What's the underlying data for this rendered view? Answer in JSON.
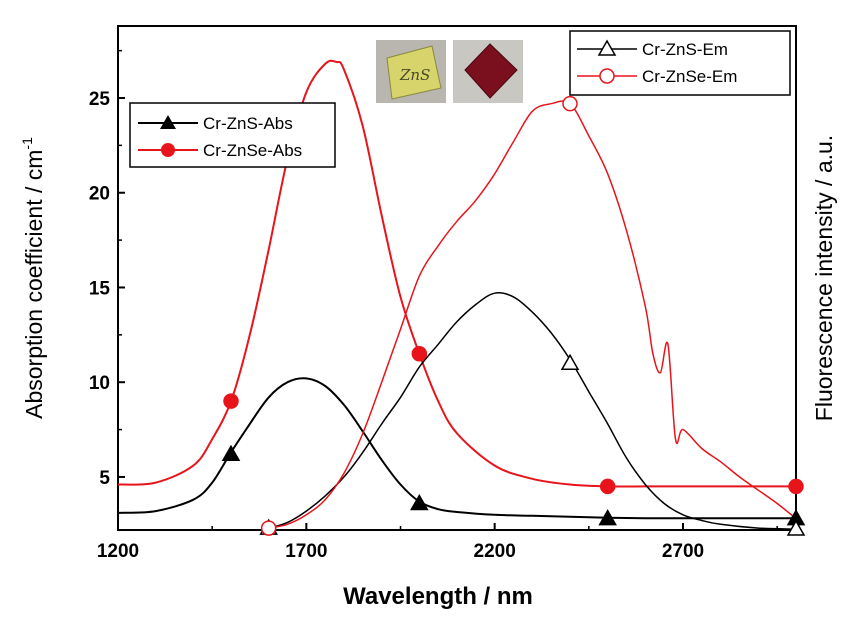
{
  "chart_data": {
    "type": "line",
    "xlabel": "Wavelength / nm",
    "ylabel_left": "Absorption coefficient / cm",
    "ylabel_left_superscript": "-1",
    "ylabel_right": "Fluorescence intensity / a.u.",
    "xlim": [
      1200,
      3000
    ],
    "ylim": [
      2.2,
      28.8
    ],
    "x_ticks": [
      1200,
      1700,
      2200,
      2700
    ],
    "y_ticks": [
      5,
      10,
      15,
      20,
      25
    ],
    "grid": false,
    "legends": [
      {
        "placement": "top-left",
        "entries": [
          "Cr-ZnS-Abs",
          "Cr-ZnSe-Abs"
        ]
      },
      {
        "placement": "top-right",
        "entries": [
          "Cr-ZnS-Em",
          "Cr-ZnSe-Em"
        ]
      }
    ],
    "series": [
      {
        "name": "Cr-ZnS-Abs",
        "axis": "left",
        "color": "#000000",
        "marker": "triangle-filled",
        "x": [
          1200,
          1300,
          1400,
          1450,
          1500,
          1550,
          1600,
          1650,
          1700,
          1750,
          1800,
          1850,
          1900,
          1950,
          2000,
          2050,
          2100,
          2200,
          2300,
          2400,
          2500,
          2600,
          2700,
          2800,
          2900,
          3000
        ],
        "y": [
          3.1,
          3.2,
          3.8,
          4.7,
          6.3,
          7.8,
          9.2,
          10.0,
          10.2,
          9.8,
          8.8,
          7.4,
          5.9,
          4.6,
          3.7,
          3.3,
          3.15,
          3.0,
          2.95,
          2.9,
          2.85,
          2.82,
          2.82,
          2.82,
          2.82,
          2.82
        ],
        "marker_x": [
          1500,
          2000,
          2500,
          3000
        ],
        "marker_y": [
          6.2,
          3.6,
          2.8,
          2.8
        ]
      },
      {
        "name": "Cr-ZnSe-Abs",
        "axis": "left",
        "color": "#e8141b",
        "marker": "circle-filled",
        "x": [
          1200,
          1300,
          1400,
          1450,
          1500,
          1550,
          1600,
          1650,
          1700,
          1750,
          1780,
          1800,
          1850,
          1900,
          1950,
          2000,
          2050,
          2100,
          2200,
          2300,
          2400,
          2500,
          2600,
          2700,
          2800,
          2900,
          3000
        ],
        "y": [
          4.6,
          4.7,
          5.6,
          7.0,
          9.0,
          12.5,
          17.0,
          21.8,
          25.3,
          26.8,
          26.9,
          26.5,
          23.5,
          18.8,
          14.5,
          11.5,
          9.0,
          7.3,
          5.6,
          4.9,
          4.6,
          4.5,
          4.5,
          4.5,
          4.5,
          4.5,
          4.5
        ],
        "marker_x": [
          1500,
          2000,
          2500,
          3000
        ],
        "marker_y": [
          9.0,
          11.5,
          4.5,
          4.5
        ]
      },
      {
        "name": "Cr-ZnS-Em",
        "axis": "right",
        "color": "#000000",
        "marker": "triangle-open",
        "x": [
          1600,
          1650,
          1700,
          1750,
          1800,
          1850,
          1900,
          1950,
          2000,
          2050,
          2100,
          2150,
          2200,
          2250,
          2300,
          2350,
          2400,
          2450,
          2500,
          2550,
          2600,
          2650,
          2700,
          2750,
          2800,
          2900,
          3000
        ],
        "y": [
          2.3,
          2.6,
          3.2,
          4.0,
          5.0,
          6.3,
          7.8,
          9.2,
          10.8,
          12.0,
          13.2,
          14.1,
          14.7,
          14.5,
          13.7,
          12.6,
          11.2,
          9.5,
          7.8,
          6.0,
          4.6,
          3.6,
          3.0,
          2.7,
          2.5,
          2.3,
          2.25
        ],
        "marker_x": [
          1600,
          2400,
          3000
        ],
        "marker_y": [
          2.3,
          11.0,
          2.25
        ]
      },
      {
        "name": "Cr-ZnSe-Em",
        "axis": "right",
        "color": "#e8141b",
        "marker": "circle-open",
        "x": [
          1600,
          1650,
          1700,
          1750,
          1800,
          1850,
          1900,
          1950,
          2000,
          2050,
          2100,
          2150,
          2200,
          2250,
          2300,
          2350,
          2400,
          2450,
          2500,
          2550,
          2600,
          2620,
          2640,
          2660,
          2680,
          2700,
          2750,
          2800,
          2850,
          2900,
          2950,
          3000
        ],
        "y": [
          2.3,
          2.5,
          3.0,
          3.8,
          5.2,
          7.3,
          10.0,
          12.8,
          15.6,
          17.2,
          18.5,
          19.6,
          21.0,
          22.7,
          24.3,
          24.7,
          24.7,
          23.0,
          21.0,
          18.0,
          14.0,
          11.5,
          10.5,
          12.0,
          7.0,
          7.5,
          6.5,
          5.8,
          5.0,
          4.3,
          3.6,
          2.8
        ],
        "marker_x": [
          1600,
          2400
        ],
        "marker_y": [
          2.3,
          24.7
        ]
      }
    ]
  },
  "photos": [
    {
      "name": "ZnS sample",
      "label": "ZnS",
      "color": "#d9d66a"
    },
    {
      "name": "ZnSe sample",
      "color": "#7a0f1e"
    }
  ]
}
